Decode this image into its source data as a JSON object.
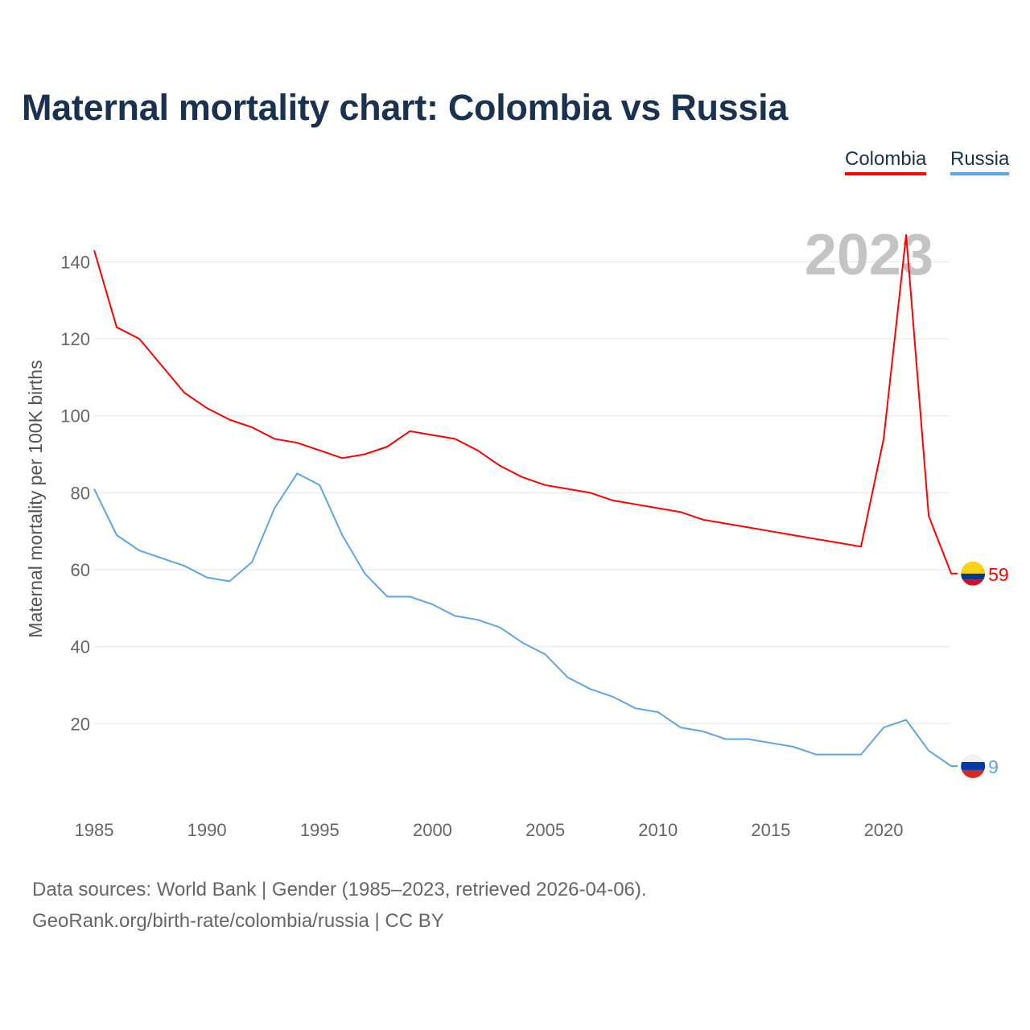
{
  "title": "Maternal mortality chart: Colombia vs Russia",
  "legend": [
    "Colombia",
    "Russia"
  ],
  "year_label": "2023",
  "footer": {
    "line1": "Data sources: World Bank | Gender (1985–2023, retrieved 2026-04-06).",
    "line2": "GeoRank.org/birth-rate/colombia/russia | CC BY"
  },
  "chart_data": {
    "type": "line",
    "title": "Maternal mortality chart: Colombia vs Russia",
    "xlabel": "",
    "ylabel": "Maternal mortality per 100K births",
    "xlim": [
      1985,
      2023
    ],
    "ylim": [
      0,
      150
    ],
    "x_ticks": [
      1985,
      1990,
      1995,
      2000,
      2005,
      2010,
      2015,
      2020
    ],
    "y_ticks": [
      20,
      40,
      60,
      80,
      100,
      120,
      140
    ],
    "grid": true,
    "legend_position": "top-right",
    "x": [
      1985,
      1986,
      1987,
      1988,
      1989,
      1990,
      1991,
      1992,
      1993,
      1994,
      1995,
      1996,
      1997,
      1998,
      1999,
      2000,
      2001,
      2002,
      2003,
      2004,
      2005,
      2006,
      2007,
      2008,
      2009,
      2010,
      2011,
      2012,
      2013,
      2014,
      2015,
      2016,
      2017,
      2018,
      2019,
      2020,
      2021,
      2022,
      2023
    ],
    "series": [
      {
        "name": "Colombia",
        "color": "#ff0000",
        "end_label": "59",
        "values": [
          143,
          123,
          120,
          113,
          106,
          102,
          99,
          97,
          94,
          93,
          91,
          89,
          90,
          92,
          96,
          95,
          94,
          91,
          87,
          84,
          82,
          81,
          80,
          78,
          77,
          76,
          75,
          73,
          72,
          71,
          70,
          69,
          68,
          67,
          66,
          94,
          147,
          74,
          59
        ]
      },
      {
        "name": "Russia",
        "color": "#5da5e8",
        "end_label": "9",
        "values": [
          81,
          69,
          65,
          63,
          61,
          58,
          57,
          62,
          76,
          85,
          82,
          69,
          59,
          53,
          53,
          51,
          48,
          47,
          45,
          41,
          38,
          32,
          29,
          27,
          24,
          23,
          19,
          18,
          16,
          16,
          15,
          14,
          12,
          12,
          12,
          19,
          21,
          13,
          9
        ]
      }
    ]
  }
}
